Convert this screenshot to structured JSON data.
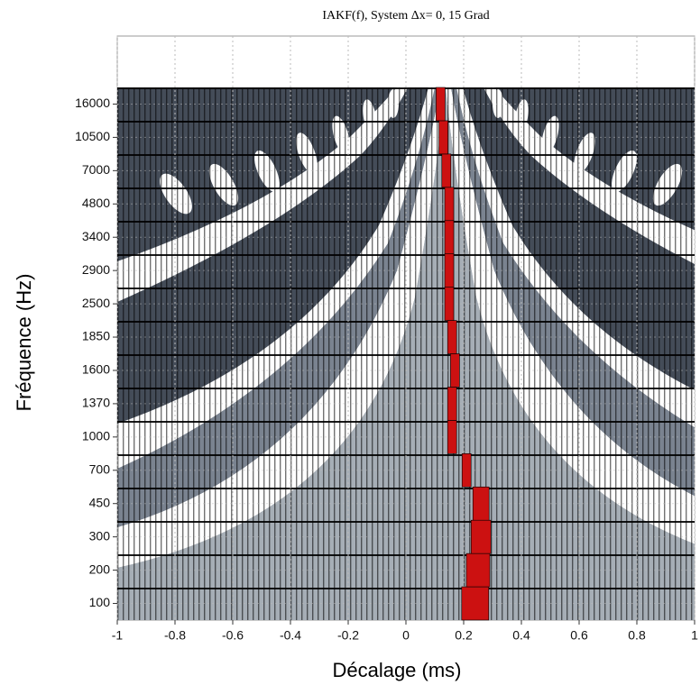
{
  "chart_data": {
    "type": "heatmap",
    "title": "IAKF(f),  System Δx= 0,   15 Grad",
    "x_label": "Décalage (ms)",
    "y_label": "Fréquence (Hz)",
    "categories": [
      "100",
      "200",
      "300",
      "450",
      "700",
      "1000",
      "1370",
      "1600",
      "1850",
      "2500",
      "2900",
      "3400",
      "4800",
      "7000",
      "10500",
      "16000"
    ],
    "peak_x": [
      0.24,
      0.25,
      0.26,
      0.26,
      0.21,
      0.16,
      0.16,
      0.17,
      0.16,
      0.15,
      0.15,
      0.15,
      0.15,
      0.14,
      0.13,
      0.12
    ],
    "peak_color": "#cc1111",
    "xlim": [
      -1,
      1
    ],
    "xticks": [
      -1,
      -0.8,
      -0.6,
      -0.4,
      -0.2,
      0,
      0.2,
      0.4,
      0.6,
      0.8,
      1
    ],
    "grid": true
  }
}
